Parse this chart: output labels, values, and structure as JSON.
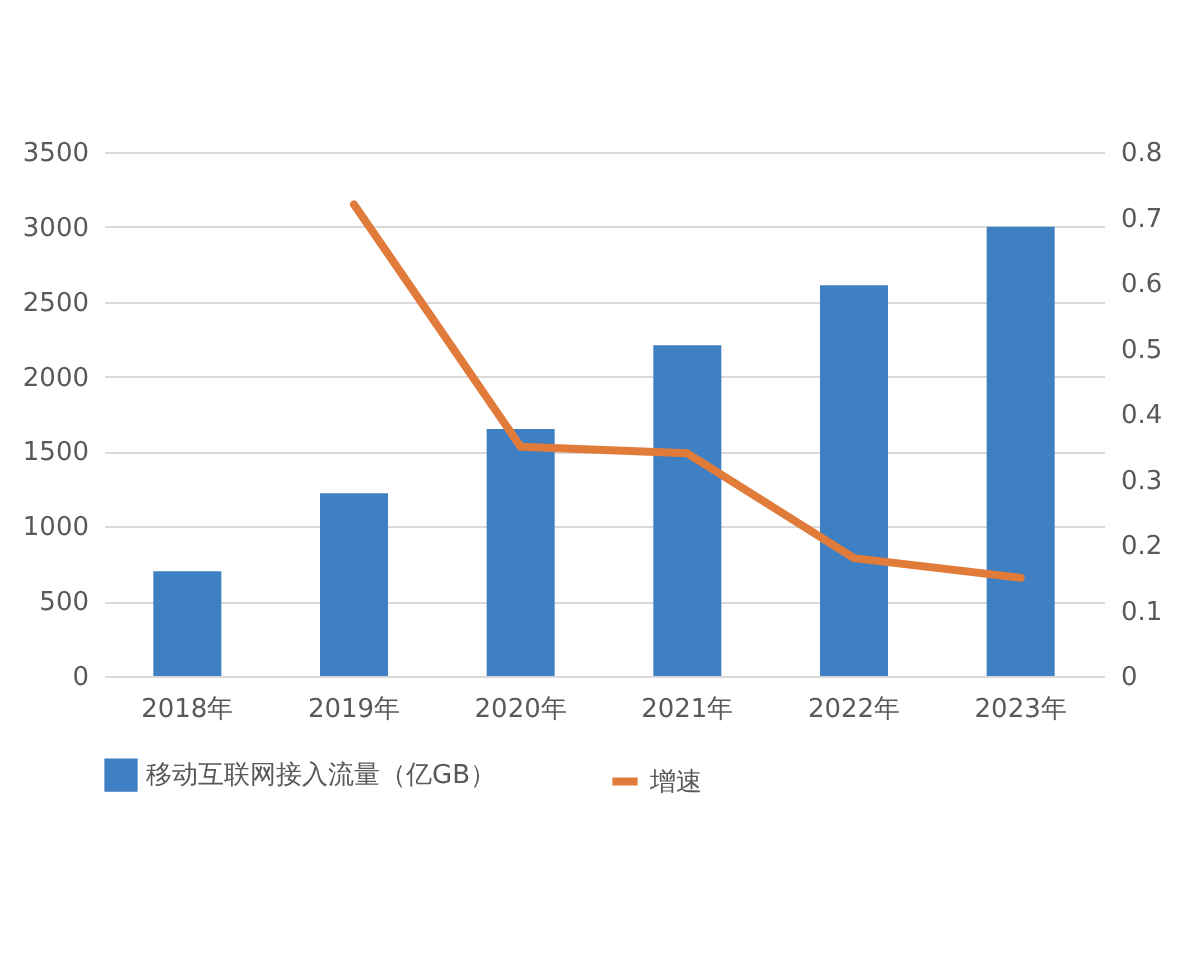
{
  "chart_data": {
    "type": "bar",
    "categories": [
      "2018年",
      "2019年",
      "2020年",
      "2021年",
      "2022年",
      "2023年"
    ],
    "series": [
      {
        "name": "移动互联网接入流量（亿GB）",
        "color": "#3f7fc4",
        "values": [
          700,
          1220,
          1650,
          2210,
          2610,
          3000
        ]
      },
      {
        "name": "增速",
        "type": "line",
        "axis": "y2",
        "color": "#e07b39",
        "values": [
          null,
          0.72,
          0.35,
          0.34,
          0.18,
          0.15
        ]
      }
    ],
    "ylim": [
      0,
      3500
    ],
    "yticks": [
      0,
      500,
      1000,
      1500,
      2000,
      2500,
      3000,
      3500
    ],
    "y2lim": [
      0,
      0.8
    ],
    "y2ticks": [
      0,
      0.1,
      0.2,
      0.3,
      0.4,
      0.5,
      0.6,
      0.7,
      0.8
    ],
    "grid": "y",
    "legend": "bottom"
  }
}
